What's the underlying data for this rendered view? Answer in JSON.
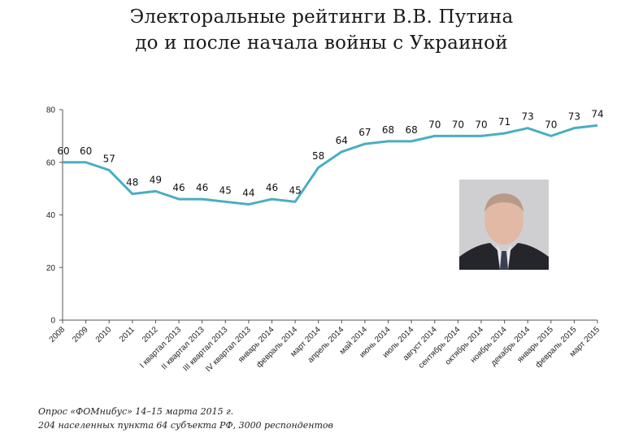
{
  "title_line1": "Электоральные рейтинги В.В. Путина",
  "title_line2": "до и после начала войны с Украиной",
  "footer_line1": "Опрос «ФОМнибус» 14–15 марта 2015 г.",
  "footer_line2": "204 населенных пункта 64 субъекта РФ, 3000 респондентов",
  "photo_icon": "portrait-photo",
  "chart_data": {
    "type": "line",
    "title": "Электоральные рейтинги В.В. Путина до и после начала войны с Украиной",
    "xlabel": "",
    "ylabel": "",
    "ylim": [
      0,
      80
    ],
    "yticks": [
      0,
      20,
      40,
      60,
      80
    ],
    "grid": false,
    "line_color": "#4aaec2",
    "categories": [
      "2008",
      "2009",
      "2010",
      "2011",
      "2012",
      "I квартал 2013",
      "II квартал 2013",
      "III квартал 2013",
      "IV квартал 2013",
      "январь 2014",
      "февраль 2014",
      "март 2014",
      "апрель 2014",
      "май 2014",
      "июнь 2014",
      "июль 2014",
      "август 2014",
      "сентябрь 2014",
      "октябрь 2014",
      "ноябрь 2014",
      "декабрь 2014",
      "январь 2015",
      "февраль 2015",
      "март 2015"
    ],
    "values": [
      60,
      60,
      57,
      48,
      49,
      46,
      46,
      45,
      44,
      46,
      45,
      58,
      64,
      67,
      68,
      68,
      70,
      70,
      70,
      71,
      73,
      70,
      73,
      74
    ]
  }
}
